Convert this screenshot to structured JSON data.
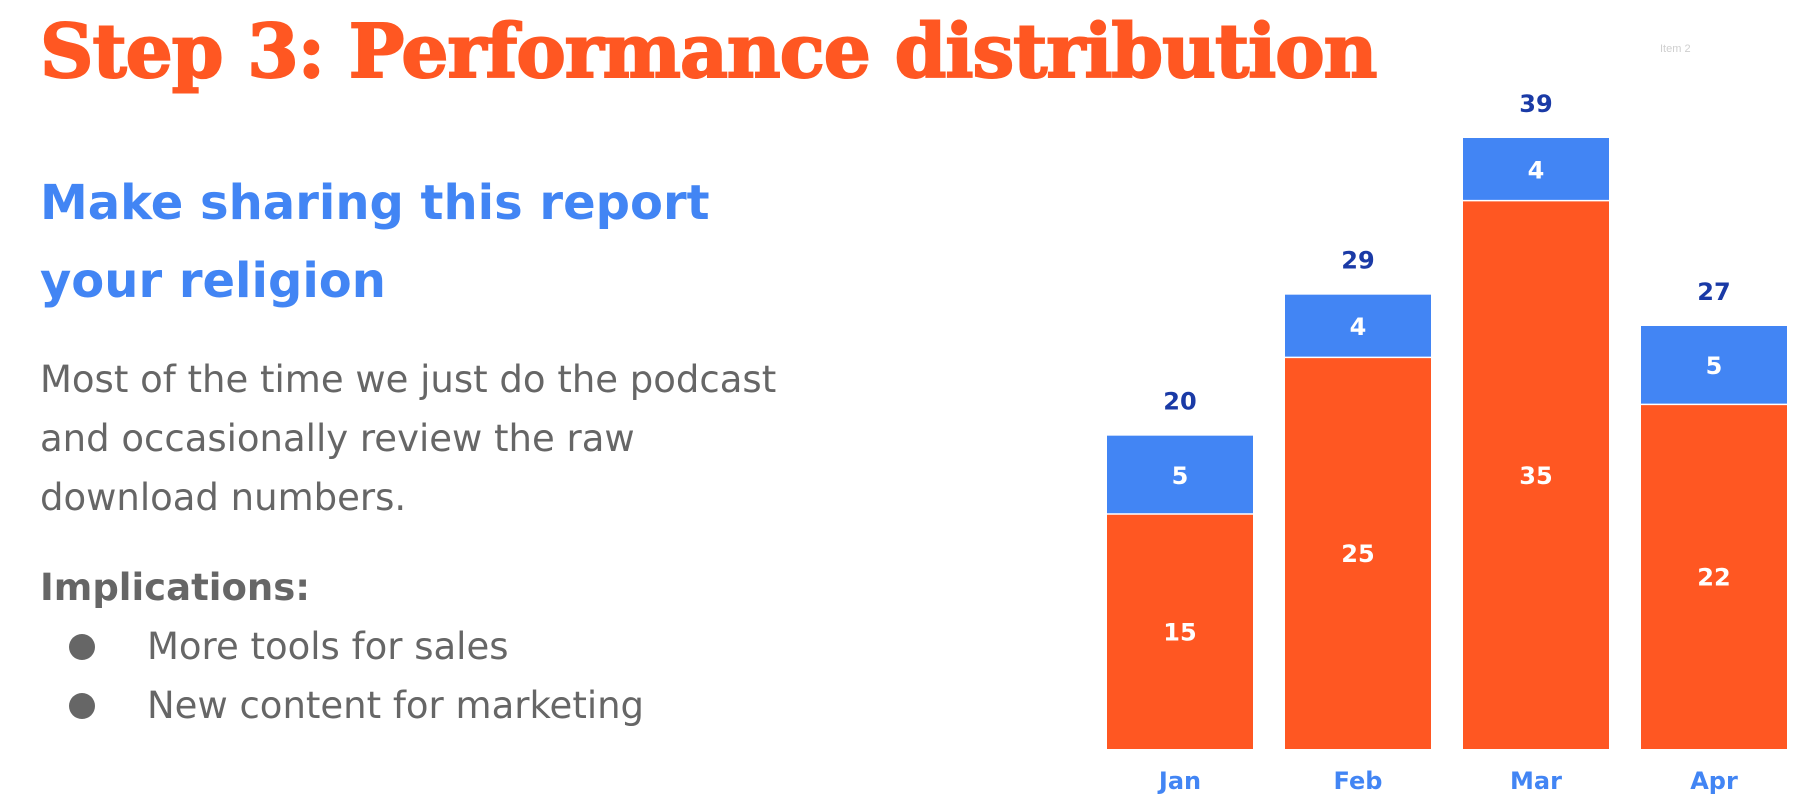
{
  "slide": {
    "title": "Step 3: Performance distribution",
    "tag": "Item 2",
    "subheading": "Make sharing this report your religion",
    "body": "Most of the time we just do the podcast and occasionally review the raw download numbers.",
    "implications_label": "Implications:",
    "implications": [
      "More tools for sales",
      "New content for marketing"
    ]
  },
  "colors": {
    "title": "#ff5722",
    "accent_blue": "#4285f4",
    "total_label": "#1a3aa6",
    "body_text": "#666666"
  },
  "chart_data": {
    "type": "bar",
    "stacked": true,
    "categories": [
      "Jan",
      "Feb",
      "Mar",
      "Apr"
    ],
    "series": [
      {
        "values": [
          15,
          25,
          35,
          22
        ],
        "color": "#ff5722"
      },
      {
        "values": [
          5,
          4,
          4,
          5
        ],
        "color": "#4285f4"
      }
    ],
    "totals": [
      20,
      29,
      39,
      27
    ],
    "title": "",
    "xlabel": "",
    "ylabel": "",
    "ylim": [
      0,
      39
    ],
    "grid": false,
    "legend": "none"
  }
}
